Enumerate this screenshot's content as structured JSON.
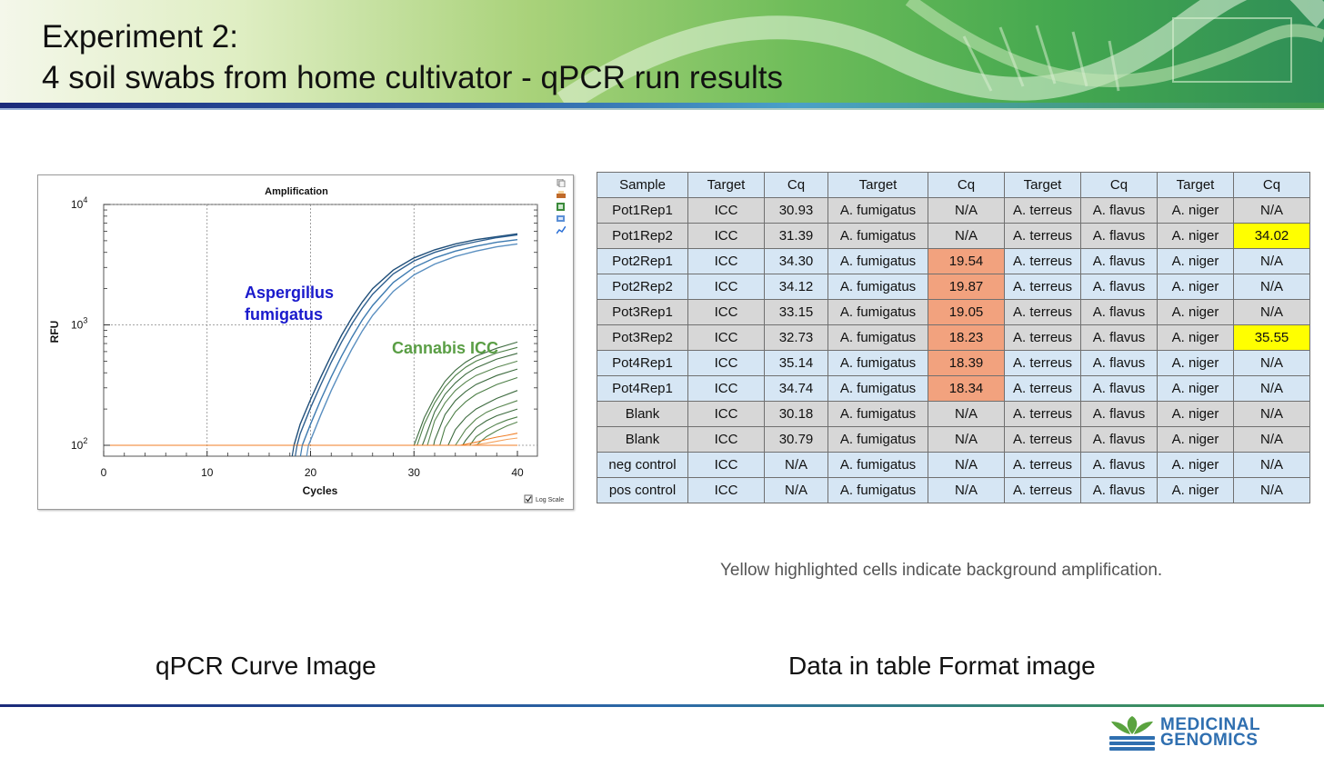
{
  "title": {
    "line1": "Experiment 2:",
    "line2": "4 soil swabs from home cultivator - qPCR run results"
  },
  "chart_data": {
    "type": "line",
    "title": "Amplification",
    "xlabel": "Cycles",
    "ylabel": "RFU",
    "xlim": [
      0,
      40
    ],
    "ylim": [
      100,
      10000
    ],
    "yscale": "log",
    "grid": true,
    "x_ticks": [
      "0",
      "10",
      "20",
      "30",
      "40"
    ],
    "y_ticks": [
      {
        "base": "10",
        "exp": "2",
        "value": 100
      },
      {
        "base": "10",
        "exp": "3",
        "value": 1000
      },
      {
        "base": "10",
        "exp": "4",
        "value": 10000
      }
    ],
    "log_scale_label": "Log Scale",
    "log_scale_checked": true,
    "annotations": [
      {
        "lines": [
          "Aspergillus",
          "fumigatus"
        ],
        "color": "#1a1acc"
      },
      {
        "lines": [
          "Cannabis ICC"
        ],
        "color": "#5a9e45"
      }
    ],
    "series": [
      {
        "group": "fumigatus",
        "color": "#1f4e79",
        "x": [
          18.4,
          19,
          20,
          21,
          22,
          23,
          24,
          25,
          26,
          28,
          30,
          32,
          34,
          36,
          38,
          40
        ],
        "y": [
          100,
          150,
          240,
          370,
          560,
          820,
          1150,
          1550,
          2000,
          2850,
          3600,
          4200,
          4700,
          5100,
          5400,
          5700
        ]
      },
      {
        "group": "fumigatus",
        "color": "#2e5f8f",
        "x": [
          18.7,
          19,
          20,
          21,
          22,
          23,
          24,
          25,
          26,
          28,
          30,
          32,
          34,
          36,
          38,
          40
        ],
        "y": [
          100,
          125,
          205,
          320,
          490,
          720,
          1020,
          1380,
          1800,
          2650,
          3400,
          4000,
          4500,
          4900,
          5300,
          5600
        ]
      },
      {
        "group": "fumigatus",
        "color": "#3d7ab0",
        "x": [
          19.2,
          20,
          21,
          22,
          23,
          24,
          25,
          26,
          28,
          30,
          32,
          34,
          36,
          38,
          40
        ],
        "y": [
          100,
          150,
          240,
          370,
          550,
          790,
          1100,
          1450,
          2250,
          3000,
          3600,
          4100,
          4500,
          4850,
          5100
        ]
      },
      {
        "group": "fumigatus",
        "color": "#5a8fc0",
        "x": [
          19.8,
          20,
          21,
          22,
          23,
          24,
          25,
          26,
          28,
          30,
          32,
          34,
          36,
          38,
          40
        ],
        "y": [
          100,
          110,
          180,
          285,
          430,
          630,
          890,
          1200,
          1900,
          2600,
          3200,
          3700,
          4100,
          4450,
          4700
        ]
      },
      {
        "group": "icc",
        "color": "#3d6b3f",
        "x": [
          30.0,
          31,
          32,
          33,
          34,
          35,
          36,
          38,
          40
        ],
        "y": [
          100,
          170,
          250,
          340,
          420,
          490,
          550,
          640,
          720
        ]
      },
      {
        "group": "icc",
        "color": "#4d7f47",
        "x": [
          30.3,
          31,
          32,
          33,
          34,
          35,
          36,
          38,
          40
        ],
        "y": [
          100,
          150,
          225,
          305,
          380,
          445,
          500,
          585,
          650
        ]
      },
      {
        "group": "icc",
        "color": "#3d6b3f",
        "x": [
          30.8,
          31,
          32,
          33,
          34,
          35,
          36,
          38,
          40
        ],
        "y": [
          100,
          110,
          190,
          265,
          330,
          390,
          440,
          520,
          580
        ]
      },
      {
        "group": "icc",
        "color": "#58864f",
        "x": [
          31.3,
          32,
          33,
          34,
          35,
          36,
          38,
          40
        ],
        "y": [
          100,
          160,
          225,
          285,
          335,
          380,
          445,
          500
        ]
      },
      {
        "group": "icc",
        "color": "#3d6b3f",
        "x": [
          31.9,
          32,
          33,
          34,
          35,
          36,
          38,
          40
        ],
        "y": [
          100,
          110,
          180,
          235,
          280,
          320,
          380,
          430
        ]
      },
      {
        "group": "icc",
        "color": "#4d7f47",
        "x": [
          32.5,
          33,
          34,
          35,
          36,
          38,
          40
        ],
        "y": [
          100,
          140,
          190,
          230,
          265,
          320,
          365
        ]
      },
      {
        "group": "icc",
        "color": "#3d6b3f",
        "x": [
          33.3,
          34,
          35,
          36,
          37,
          38,
          40
        ],
        "y": [
          100,
          135,
          170,
          200,
          222,
          245,
          285
        ]
      },
      {
        "group": "icc",
        "color": "#58864f",
        "x": [
          34.0,
          35,
          36,
          37,
          38,
          40
        ],
        "y": [
          100,
          135,
          165,
          188,
          205,
          235
        ]
      },
      {
        "group": "icc",
        "color": "#3d6b3f",
        "x": [
          34.7,
          35,
          36,
          37,
          38,
          40
        ],
        "y": [
          100,
          110,
          140,
          160,
          176,
          200
        ]
      },
      {
        "group": "icc",
        "color": "#4d7f47",
        "x": [
          35.4,
          36,
          37,
          38,
          39,
          40
        ],
        "y": [
          100,
          118,
          135,
          150,
          162,
          172
        ]
      },
      {
        "group": "icc",
        "color": "#58864f",
        "x": [
          36.0,
          37,
          38,
          39,
          40
        ],
        "y": [
          100,
          118,
          132,
          145,
          156
        ]
      },
      {
        "group": "bg",
        "color": "#f07e26",
        "x": [
          0,
          10,
          20,
          30,
          40
        ],
        "y": [
          100,
          100,
          100,
          100,
          100
        ]
      },
      {
        "group": "bg",
        "color": "#f07e26",
        "x": [
          34.5,
          36,
          37,
          38,
          39,
          40
        ],
        "y": [
          100,
          106,
          112,
          117,
          121,
          126
        ]
      },
      {
        "group": "bg",
        "color": "#f5a05a",
        "x": [
          35.5,
          37,
          38,
          39,
          40
        ],
        "y": [
          100,
          104,
          108,
          112,
          115
        ]
      }
    ]
  },
  "table": {
    "headers": [
      "Sample",
      "Target",
      "Cq",
      "Target",
      "Cq",
      "Target",
      "Cq",
      "Target",
      "Cq"
    ],
    "rows": [
      [
        "Pot1Rep1",
        "ICC",
        "30.93",
        "A. fumigatus",
        "N/A",
        "A. terreus",
        "A. flavus",
        "A. niger",
        "N/A"
      ],
      [
        "Pot1Rep2",
        "ICC",
        "31.39",
        "A. fumigatus",
        "N/A",
        "A. terreus",
        "A. flavus",
        "A. niger",
        "34.02"
      ],
      [
        "Pot2Rep1",
        "ICC",
        "34.30",
        "A. fumigatus",
        "19.54",
        "A. terreus",
        "A. flavus",
        "A. niger",
        "N/A"
      ],
      [
        "Pot2Rep2",
        "ICC",
        "34.12",
        "A. fumigatus",
        "19.87",
        "A. terreus",
        "A. flavus",
        "A. niger",
        "N/A"
      ],
      [
        "Pot3Rep1",
        "ICC",
        "33.15",
        "A. fumigatus",
        "19.05",
        "A. terreus",
        "A. flavus",
        "A. niger",
        "N/A"
      ],
      [
        "Pot3Rep2",
        "ICC",
        "32.73",
        "A. fumigatus",
        "18.23",
        "A. terreus",
        "A. flavus",
        "A. niger",
        "35.55"
      ],
      [
        "Pot4Rep1",
        "ICC",
        "35.14",
        "A. fumigatus",
        "18.39",
        "A. terreus",
        "A. flavus",
        "A. niger",
        "N/A"
      ],
      [
        "Pot4Rep1",
        "ICC",
        "34.74",
        "A. fumigatus",
        "18.34",
        "A. terreus",
        "A. flavus",
        "A. niger",
        "N/A"
      ],
      [
        "Blank",
        "ICC",
        "30.18",
        "A. fumigatus",
        "N/A",
        "A. terreus",
        "A. flavus",
        "A. niger",
        "N/A"
      ],
      [
        "Blank",
        "ICC",
        "30.79",
        "A. fumigatus",
        "N/A",
        "A. terreus",
        "A. flavus",
        "A. niger",
        "N/A"
      ],
      [
        "neg control",
        "ICC",
        "N/A",
        "A. fumigatus",
        "N/A",
        "A. terreus",
        "A. flavus",
        "A. niger",
        "N/A"
      ],
      [
        "pos control",
        "ICC",
        "N/A",
        "A. fumigatus",
        "N/A",
        "A. terreus",
        "A. flavus",
        "A. niger",
        "N/A"
      ]
    ],
    "row_shading": [
      "blue",
      "gray",
      "gray",
      "blue",
      "blue",
      "gray",
      "gray",
      "blue",
      "blue",
      "gray",
      "gray",
      "blue",
      "blue"
    ],
    "highlights": [
      {
        "row": 2,
        "col": 4,
        "color": "orange"
      },
      {
        "row": 3,
        "col": 4,
        "color": "orange"
      },
      {
        "row": 4,
        "col": 4,
        "color": "orange"
      },
      {
        "row": 5,
        "col": 4,
        "color": "orange"
      },
      {
        "row": 6,
        "col": 4,
        "color": "orange"
      },
      {
        "row": 7,
        "col": 4,
        "color": "orange"
      },
      {
        "row": 1,
        "col": 8,
        "color": "yellow"
      },
      {
        "row": 5,
        "col": 8,
        "color": "yellow"
      }
    ]
  },
  "note": "Yellow highlighted cells indicate background amplification.",
  "captions": {
    "left": "qPCR Curve Image",
    "right": "Data in table Format image"
  },
  "logo": {
    "line1": "MEDICINAL",
    "line2": "GENOMICS"
  },
  "colors": {
    "orange_highlight": "#f2a27e",
    "yellow_highlight": "#ffff00",
    "row_blue": "#d6e6f4",
    "row_gray": "#d7d7d7",
    "logo_green": "#5aa33f",
    "logo_blue": "#2f6fb0"
  },
  "icons": [
    "copy-icon",
    "print-icon",
    "export-icon",
    "zoom-icon",
    "trend-icon"
  ]
}
